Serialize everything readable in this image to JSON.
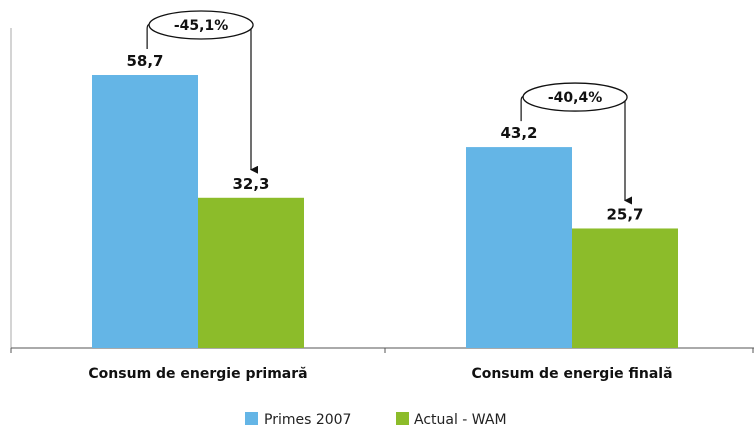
{
  "chart_data": {
    "type": "bar",
    "categories": [
      "Consum de energie primară",
      "Consum de energie finală"
    ],
    "series": [
      {
        "name": "Primes 2007",
        "values": [
          58.7,
          43.2
        ],
        "labels": [
          "58,7",
          "43,2"
        ],
        "color": "#64b5e6"
      },
      {
        "name": "Actual - WAM",
        "values": [
          32.3,
          25.7
        ],
        "labels": [
          "32,3",
          "25,7"
        ],
        "color": "#8cbc2a"
      }
    ],
    "annotations": [
      "-45,1%",
      "-40,4%"
    ],
    "ylim": [
      0,
      75
    ],
    "grid": false,
    "legend": "bottom",
    "title": "",
    "xlabel": "",
    "ylabel": ""
  }
}
